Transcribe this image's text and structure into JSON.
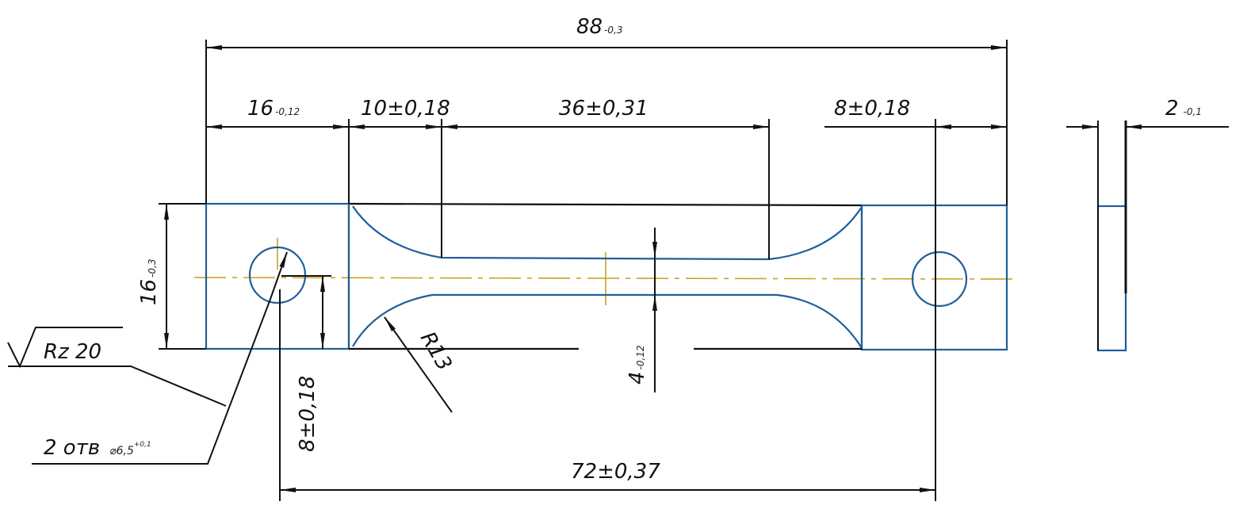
{
  "dimensions": {
    "overall_length": {
      "value": "88",
      "tol": "-0,3"
    },
    "grip_length": {
      "value": "16",
      "tol": "-0,12"
    },
    "transition_length": {
      "value": "10±0,18"
    },
    "gauge_length": {
      "value": "36±0,31"
    },
    "hole_offset": {
      "value": "8±0,18"
    },
    "thickness": {
      "value": "2",
      "tol": "-0,1"
    },
    "width": {
      "value": "16",
      "tol": "-0,3"
    },
    "hole_center_height": {
      "value": "8±0,18"
    },
    "gauge_width": {
      "value": "4",
      "tol": "-0,12"
    },
    "fillet_radius": {
      "value": "R13"
    },
    "hole_spacing": {
      "value": "72±0,37"
    }
  },
  "annotations": {
    "roughness": "Rz 20",
    "holes": "2 отв",
    "hole_diameter": "⌀6,5",
    "hole_tol": "+0,1"
  },
  "colors": {
    "outline": "#1f5f9a",
    "centerline": "#c9a227",
    "dimension": "#111111"
  }
}
